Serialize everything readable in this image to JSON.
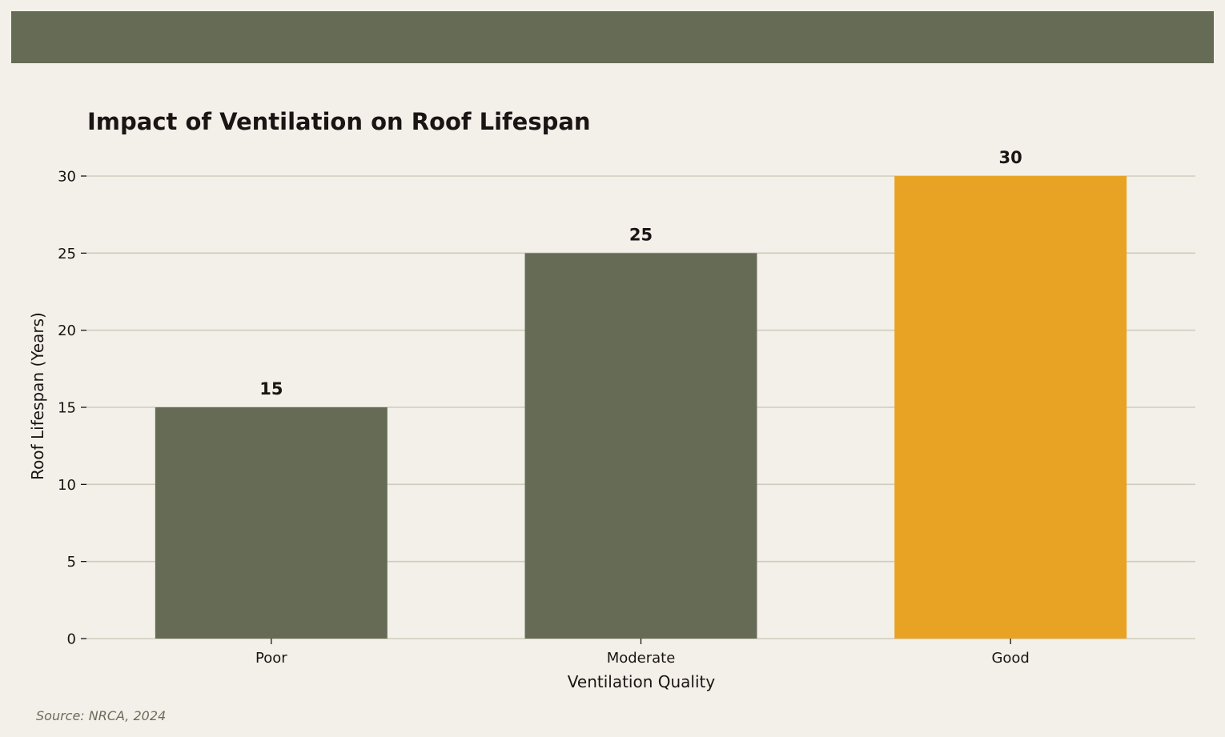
{
  "chart_data": {
    "type": "bar",
    "title": "Impact of Ventilation on Roof Lifespan",
    "xlabel": "Ventilation Quality",
    "ylabel": "Roof Lifespan (Years)",
    "categories": [
      "Poor",
      "Moderate",
      "Good"
    ],
    "values": [
      15,
      25,
      30
    ],
    "data_labels": [
      "15",
      "25",
      "30"
    ],
    "ylim": [
      0,
      30
    ],
    "yticks": [
      0,
      5,
      10,
      15,
      20,
      25,
      30
    ],
    "grid": "horizontal",
    "legend": "none",
    "colors": {
      "bar_default": "#666b55",
      "bar_highlight": "#e8a324",
      "highlight_category": "Good",
      "banner": "#666b55",
      "grid": "#cfcdbd",
      "background": "#f2f0e8"
    }
  },
  "source": "Source: NRCA, 2024"
}
